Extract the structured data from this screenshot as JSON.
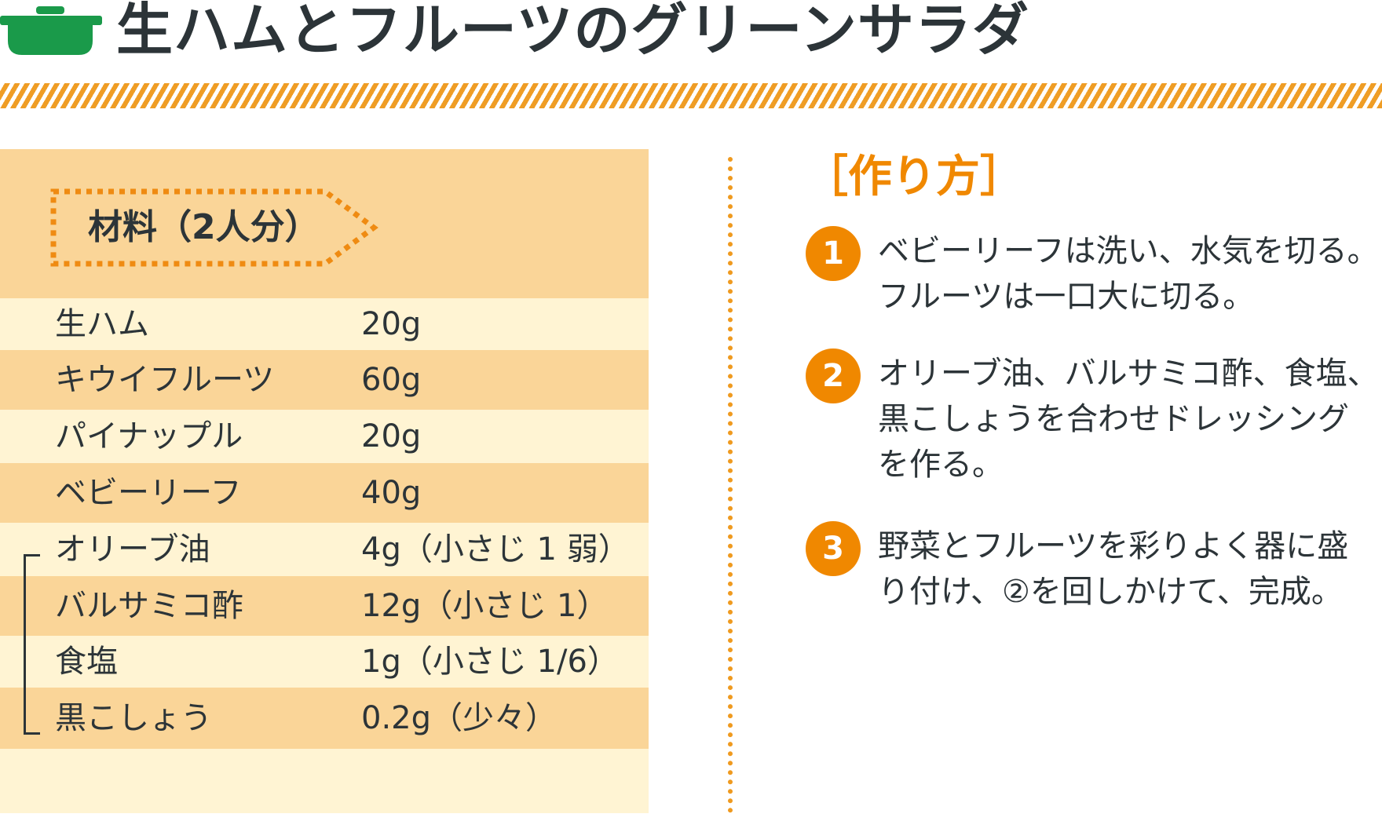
{
  "header": {
    "title": "生ハムとフルーツのグリーンサラダ",
    "icon": "pot-icon",
    "icon_color": "#1a9a4a",
    "stripe_color": "#ef9d25"
  },
  "ingredients": {
    "heading": "材料（2人分）",
    "panel_colors": {
      "light": "#fff4d3",
      "dark": "#fad598"
    },
    "items": [
      {
        "name": "生ハム",
        "qty": "20g"
      },
      {
        "name": "キウイフルーツ",
        "qty": "60g"
      },
      {
        "name": "パイナップル",
        "qty": "20g"
      },
      {
        "name": "ベビーリーフ",
        "qty": "40g"
      },
      {
        "name": "オリーブ油",
        "qty": "4g（小さじ 1 弱）"
      },
      {
        "name": "バルサミコ酢",
        "qty": "12g（小さじ 1）"
      },
      {
        "name": "食塩",
        "qty": "1g（小さじ 1/6）"
      },
      {
        "name": "黒こしょう",
        "qty": "0.2g（少々）"
      }
    ]
  },
  "method": {
    "title": "［作り方］",
    "accent_color": "#f08800",
    "steps": [
      {
        "num": "1",
        "lines": [
          "ベビーリーフは洗い、水気を切る。",
          "フルーツは一口大に切る。"
        ]
      },
      {
        "num": "2",
        "lines": [
          "オリーブ油、バルサミコ酢、食塩、",
          "黒こしょうを合わせドレッシング",
          "を作る。"
        ]
      },
      {
        "num": "3",
        "lines": [
          "野菜とフルーツを彩りよく器に盛",
          "り付け、②を回しかけて、完成。"
        ]
      }
    ]
  }
}
